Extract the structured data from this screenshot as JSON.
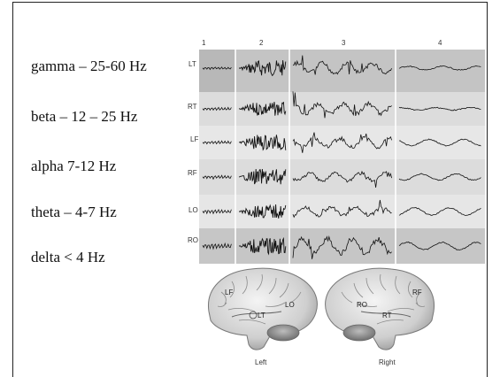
{
  "bands": [
    {
      "label": "gamma – 25-60 Hz"
    },
    {
      "label": "beta – 12 – 25 Hz"
    },
    {
      "label": "alpha 7-12 Hz"
    },
    {
      "label": "theta – 4-7 Hz"
    },
    {
      "label": "delta < 4 Hz"
    }
  ],
  "columns": [
    "1",
    "2",
    "3",
    "4"
  ],
  "channels": [
    "LT",
    "RT",
    "LF",
    "RF",
    "LO",
    "RO"
  ],
  "brains": {
    "left": {
      "caption": "Left",
      "regions": [
        "LF",
        "LT",
        "LO"
      ]
    },
    "right": {
      "caption": "Right",
      "regions": [
        "RO",
        "RT",
        "RF"
      ]
    }
  }
}
